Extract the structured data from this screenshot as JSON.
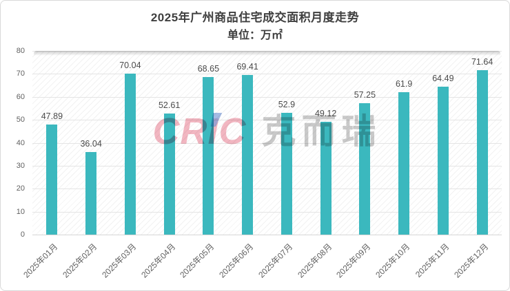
{
  "header": {
    "title": "2025年广州商品住宅成交面积月度走势",
    "subtitle": "单位：万㎡"
  },
  "watermark": {
    "latin": "CRIC",
    "cjk": "克而瑞"
  },
  "chart_data": {
    "type": "bar",
    "title": "2025年广州商品住宅成交面积月度走势",
    "unit_label": "单位：万㎡",
    "xlabel": "",
    "ylabel": "",
    "categories": [
      "2025年01月",
      "2025年02月",
      "2025年03月",
      "2025年04月",
      "2025年05月",
      "2025年06月",
      "2025年07月",
      "2025年08月",
      "2025年09月",
      "2025年10月",
      "2025年11月",
      "2025年12月"
    ],
    "values": [
      47.89,
      36.04,
      70.04,
      52.61,
      68.65,
      69.41,
      52.9,
      49.12,
      57.25,
      61.9,
      64.49,
      71.64
    ],
    "data_labels": [
      "47.89",
      "36.04",
      "70.04",
      "52.61",
      "68.65",
      "69.41",
      "52.9",
      "49.12",
      "57.25",
      "61.9",
      "64.49",
      "71.64"
    ],
    "ylim": [
      0,
      80
    ],
    "y_ticks": [
      0,
      10,
      20,
      30,
      40,
      50,
      60,
      70,
      80
    ],
    "grid": true,
    "legend_position": "none",
    "bar_color": "#3BB8BE"
  },
  "colors": {
    "bar": "#3BB8BE",
    "title_text": "#3f3f3f",
    "axis_text": "#5f5f5f",
    "value_label_text": "#4a4a4a",
    "gridline": "#e4e4e4",
    "watermark_pink": "#e77a8e",
    "watermark_gray": "#949494",
    "watermark_blue": "#7496d6",
    "card_border": "#d9d9d9"
  }
}
